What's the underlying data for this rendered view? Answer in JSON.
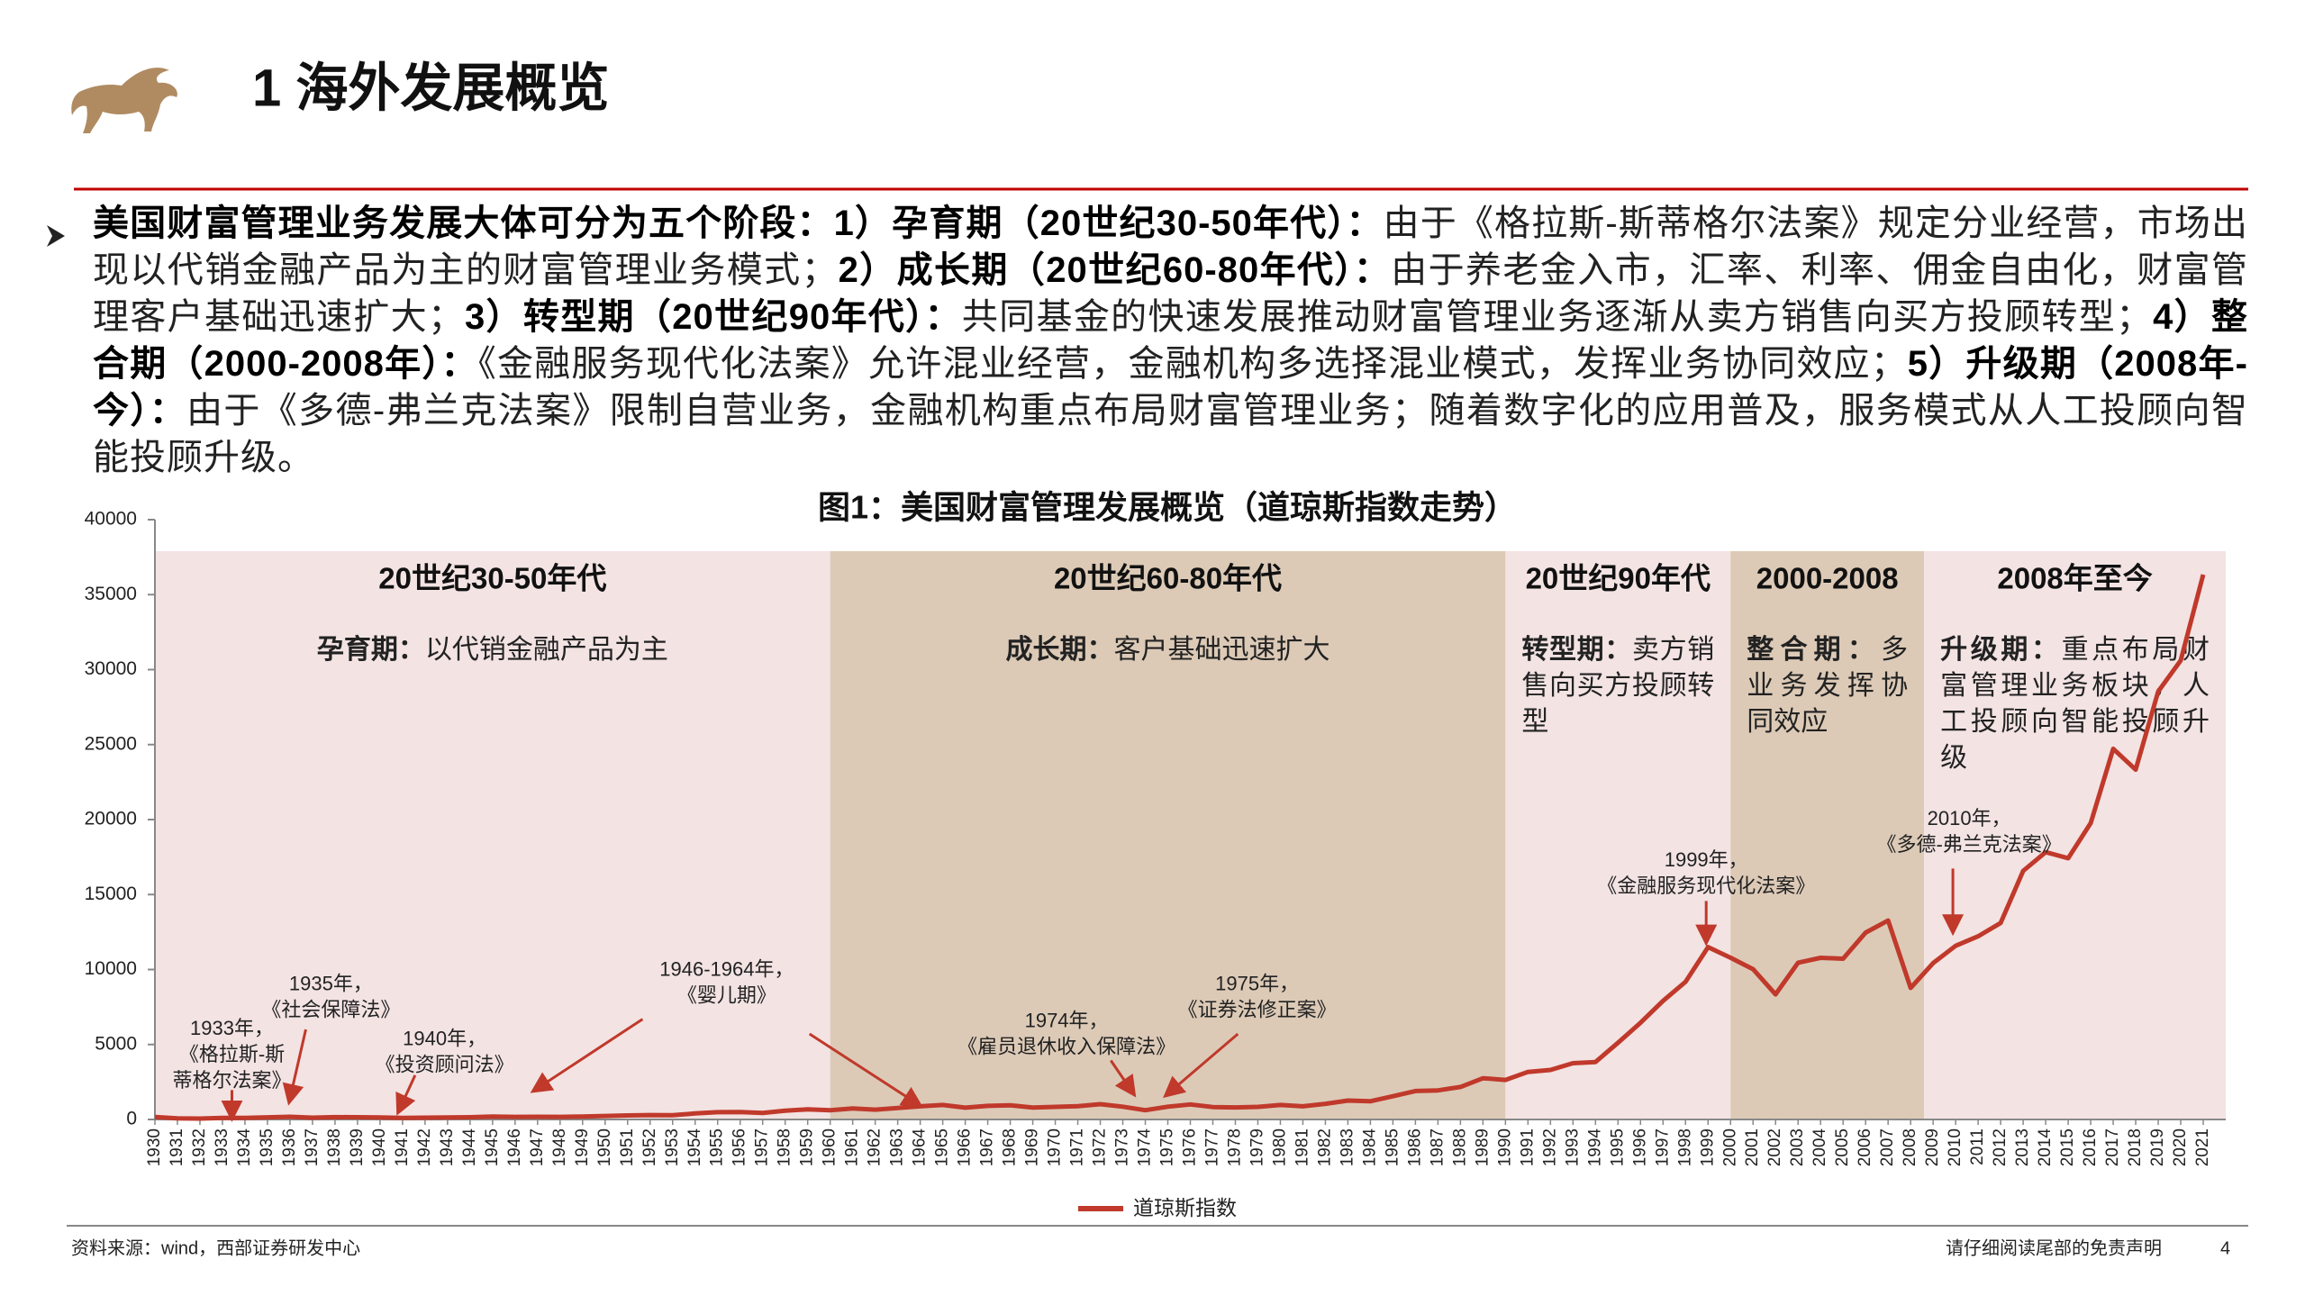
{
  "header": {
    "title": "1 海外发展概览"
  },
  "paragraph": [
    {
      "text": "美国财富管理业务发展大体可分为五个阶段：1）孕育期（20世纪30-50年代）：",
      "bold": true
    },
    {
      "text": "由于《格拉斯-斯蒂格尔法案》规定分业经营，市场出现以代销金融产品为主的财富管理业务模式；",
      "bold": false
    },
    {
      "text": "2）成长期（20世纪60-80年代）：",
      "bold": true
    },
    {
      "text": "由于养老金入市，汇率、利率、佣金自由化，财富管理客户基础迅速扩大；",
      "bold": false
    },
    {
      "text": "3）转型期（20世纪90年代）：",
      "bold": true
    },
    {
      "text": "共同基金的快速发展推动财富管理业务逐渐从卖方销售向买方投顾转型；",
      "bold": false
    },
    {
      "text": "4）整合期（2000-2008年）：",
      "bold": true
    },
    {
      "text": "《金融服务现代化法案》允许混业经营，金融机构多选择混业模式，发挥业务协同效应；",
      "bold": false
    },
    {
      "text": "5）升级期（2008年-今）：",
      "bold": true
    },
    {
      "text": "由于《多德-弗兰克法案》限制自营业务，金融机构重点布局财富管理业务；随着数字化的应用普及，服务模式从人工投顾向智能投顾升级。",
      "bold": false
    }
  ],
  "chart_data": {
    "type": "line",
    "title": "图1：美国财富管理发展概览（道琼斯指数走势）",
    "x": [
      1930,
      1931,
      1932,
      1933,
      1934,
      1935,
      1936,
      1937,
      1938,
      1939,
      1940,
      1941,
      1942,
      1943,
      1944,
      1945,
      1946,
      1947,
      1948,
      1949,
      1950,
      1951,
      1952,
      1953,
      1954,
      1955,
      1956,
      1957,
      1958,
      1959,
      1960,
      1961,
      1962,
      1963,
      1964,
      1965,
      1966,
      1967,
      1968,
      1969,
      1970,
      1971,
      1972,
      1973,
      1974,
      1975,
      1976,
      1977,
      1978,
      1979,
      1980,
      1981,
      1982,
      1983,
      1984,
      1985,
      1986,
      1987,
      1988,
      1989,
      1990,
      1991,
      1992,
      1993,
      1994,
      1995,
      1996,
      1997,
      1998,
      1999,
      2000,
      2001,
      2002,
      2003,
      2004,
      2005,
      2006,
      2007,
      2008,
      2009,
      2010,
      2011,
      2012,
      2013,
      2014,
      2015,
      2016,
      2017,
      2018,
      2019,
      2020,
      2021
    ],
    "series": [
      {
        "name": "道琼斯指数",
        "color": "#c0392b",
        "values": [
          165,
          78,
          60,
          100,
          104,
          144,
          180,
          121,
          155,
          150,
          131,
          111,
          119,
          136,
          152,
          193,
          177,
          181,
          177,
          200,
          235,
          269,
          292,
          281,
          404,
          488,
          500,
          436,
          584,
          679,
          616,
          731,
          652,
          763,
          874,
          969,
          786,
          905,
          944,
          800,
          839,
          890,
          1020,
          851,
          616,
          852,
          1005,
          831,
          805,
          839,
          964,
          875,
          1047,
          1259,
          1212,
          1547,
          1896,
          1939,
          2169,
          2753,
          2634,
          3169,
          3301,
          3754,
          3834,
          5117,
          6448,
          7908,
          9181,
          11497,
          10787,
          10022,
          8342,
          10454,
          10783,
          10718,
          12463,
          13265,
          8776,
          10428,
          11578,
          12218,
          13104,
          16577,
          17823,
          17425,
          19763,
          24719,
          23327,
          28538,
          30606,
          36338
        ]
      }
    ],
    "xlim": [
      1930,
      2022
    ],
    "xticks": [
      1930,
      1931,
      1932,
      1933,
      1934,
      1935,
      1936,
      1937,
      1938,
      1939,
      1940,
      1941,
      1942,
      1943,
      1944,
      1945,
      1946,
      1947,
      1948,
      1949,
      1950,
      1951,
      1952,
      1953,
      1954,
      1955,
      1956,
      1957,
      1958,
      1959,
      1960,
      1961,
      1962,
      1963,
      1964,
      1965,
      1966,
      1967,
      1968,
      1969,
      1970,
      1971,
      1972,
      1973,
      1974,
      1975,
      1976,
      1977,
      1978,
      1979,
      1980,
      1981,
      1982,
      1983,
      1984,
      1985,
      1986,
      1987,
      1988,
      1989,
      1990,
      1991,
      1992,
      1993,
      1994,
      1995,
      1996,
      1997,
      1998,
      1999,
      2000,
      2001,
      2002,
      2003,
      2004,
      2005,
      2006,
      2007,
      2008,
      2009,
      2010,
      2011,
      2012,
      2013,
      2014,
      2015,
      2016,
      2017,
      2018,
      2019,
      2020,
      2021
    ],
    "ylim": [
      0,
      40000
    ],
    "yticks": [
      0,
      5000,
      10000,
      15000,
      20000,
      25000,
      30000,
      35000,
      40000
    ],
    "periods": [
      {
        "range": [
          1930,
          1960
        ],
        "color": "#f3e3e3",
        "heading": "20世纪30-50年代",
        "label": "孕育期：",
        "text": "以代销金融产品为主"
      },
      {
        "range": [
          1960,
          1990
        ],
        "color": "#dccab7",
        "heading": "20世纪60-80年代",
        "label": "成长期：",
        "text": "客户基础迅速扩大"
      },
      {
        "range": [
          1990,
          2000
        ],
        "color": "#f3e3e3",
        "heading": "20世纪90年代",
        "label": "转型期：",
        "text": "卖方销售向买方投顾转型"
      },
      {
        "range": [
          2000,
          2008.6
        ],
        "color": "#dccab7",
        "heading": "2000-2008",
        "label": "整合期：",
        "text": "多业务发挥协同效应"
      },
      {
        "range": [
          2008.6,
          2022
        ],
        "color": "#f3e3e3",
        "heading": "2008年至今",
        "label": "升级期：",
        "text": "重点布局财富管理业务板块，人工投顾向智能投顾升级"
      }
    ],
    "annotations": [
      {
        "lines": [
          "1933年，",
          "《格拉斯-斯",
          "蒂格尔法案》"
        ]
      },
      {
        "lines": [
          "1935年，",
          "《社会保障法》"
        ]
      },
      {
        "lines": [
          "1940年，",
          "《投资顾问法》"
        ]
      },
      {
        "lines": [
          "1946-1964年，",
          "《婴儿期》"
        ]
      },
      {
        "lines": [
          "1974年，",
          "《雇员退休收入保障法》"
        ]
      },
      {
        "lines": [
          "1975年，",
          "《证券法修正案》"
        ]
      },
      {
        "lines": [
          "1999年，",
          "《金融服务现代化法案》"
        ]
      },
      {
        "lines": [
          "2010年，",
          "《多德-弗兰克法案》"
        ]
      }
    ]
  },
  "footer": {
    "source": "资料来源：wind，西部证券研发中心",
    "disclaimer": "请仔细阅读尾部的免责声明",
    "page": "4"
  }
}
